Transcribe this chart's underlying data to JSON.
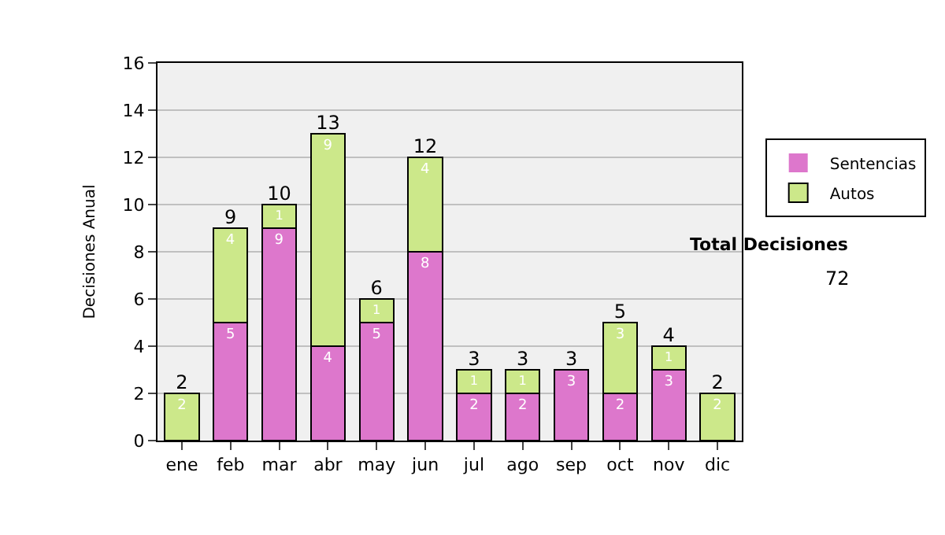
{
  "chart_data": {
    "type": "bar",
    "stacked": true,
    "ylabel": "Decisiones Anual",
    "categories": [
      "ene",
      "feb",
      "mar",
      "abr",
      "may",
      "jun",
      "jul",
      "ago",
      "sep",
      "oct",
      "nov",
      "dic"
    ],
    "series": [
      {
        "name": "Sentencias",
        "color": "#dd77cc",
        "values": [
          0,
          5,
          9,
          4,
          5,
          8,
          2,
          2,
          3,
          2,
          3,
          0
        ],
        "value_labels": [
          null,
          "5",
          "9",
          "4",
          "5",
          "8",
          "2",
          "2",
          "3",
          "2",
          "3",
          null
        ]
      },
      {
        "name": "Autos",
        "color": "#cce88a",
        "values": [
          2,
          4,
          1,
          9,
          1,
          4,
          1,
          1,
          0,
          3,
          1,
          2
        ],
        "value_labels": [
          "2",
          "4",
          "1",
          "9",
          "1",
          "4",
          "1",
          "1",
          null,
          "3",
          "1",
          "2"
        ]
      }
    ],
    "totals": [
      "2",
      "9",
      "10",
      "13",
      "6",
      "12",
      "3",
      "3",
      "3",
      "5",
      "4",
      "2"
    ],
    "ylim": [
      0,
      16
    ],
    "yticks": [
      0,
      2,
      4,
      6,
      8,
      10,
      12,
      14,
      16
    ],
    "grid": "y",
    "legend": "right",
    "annotations": [
      "Total Decisiones",
      "72"
    ]
  }
}
